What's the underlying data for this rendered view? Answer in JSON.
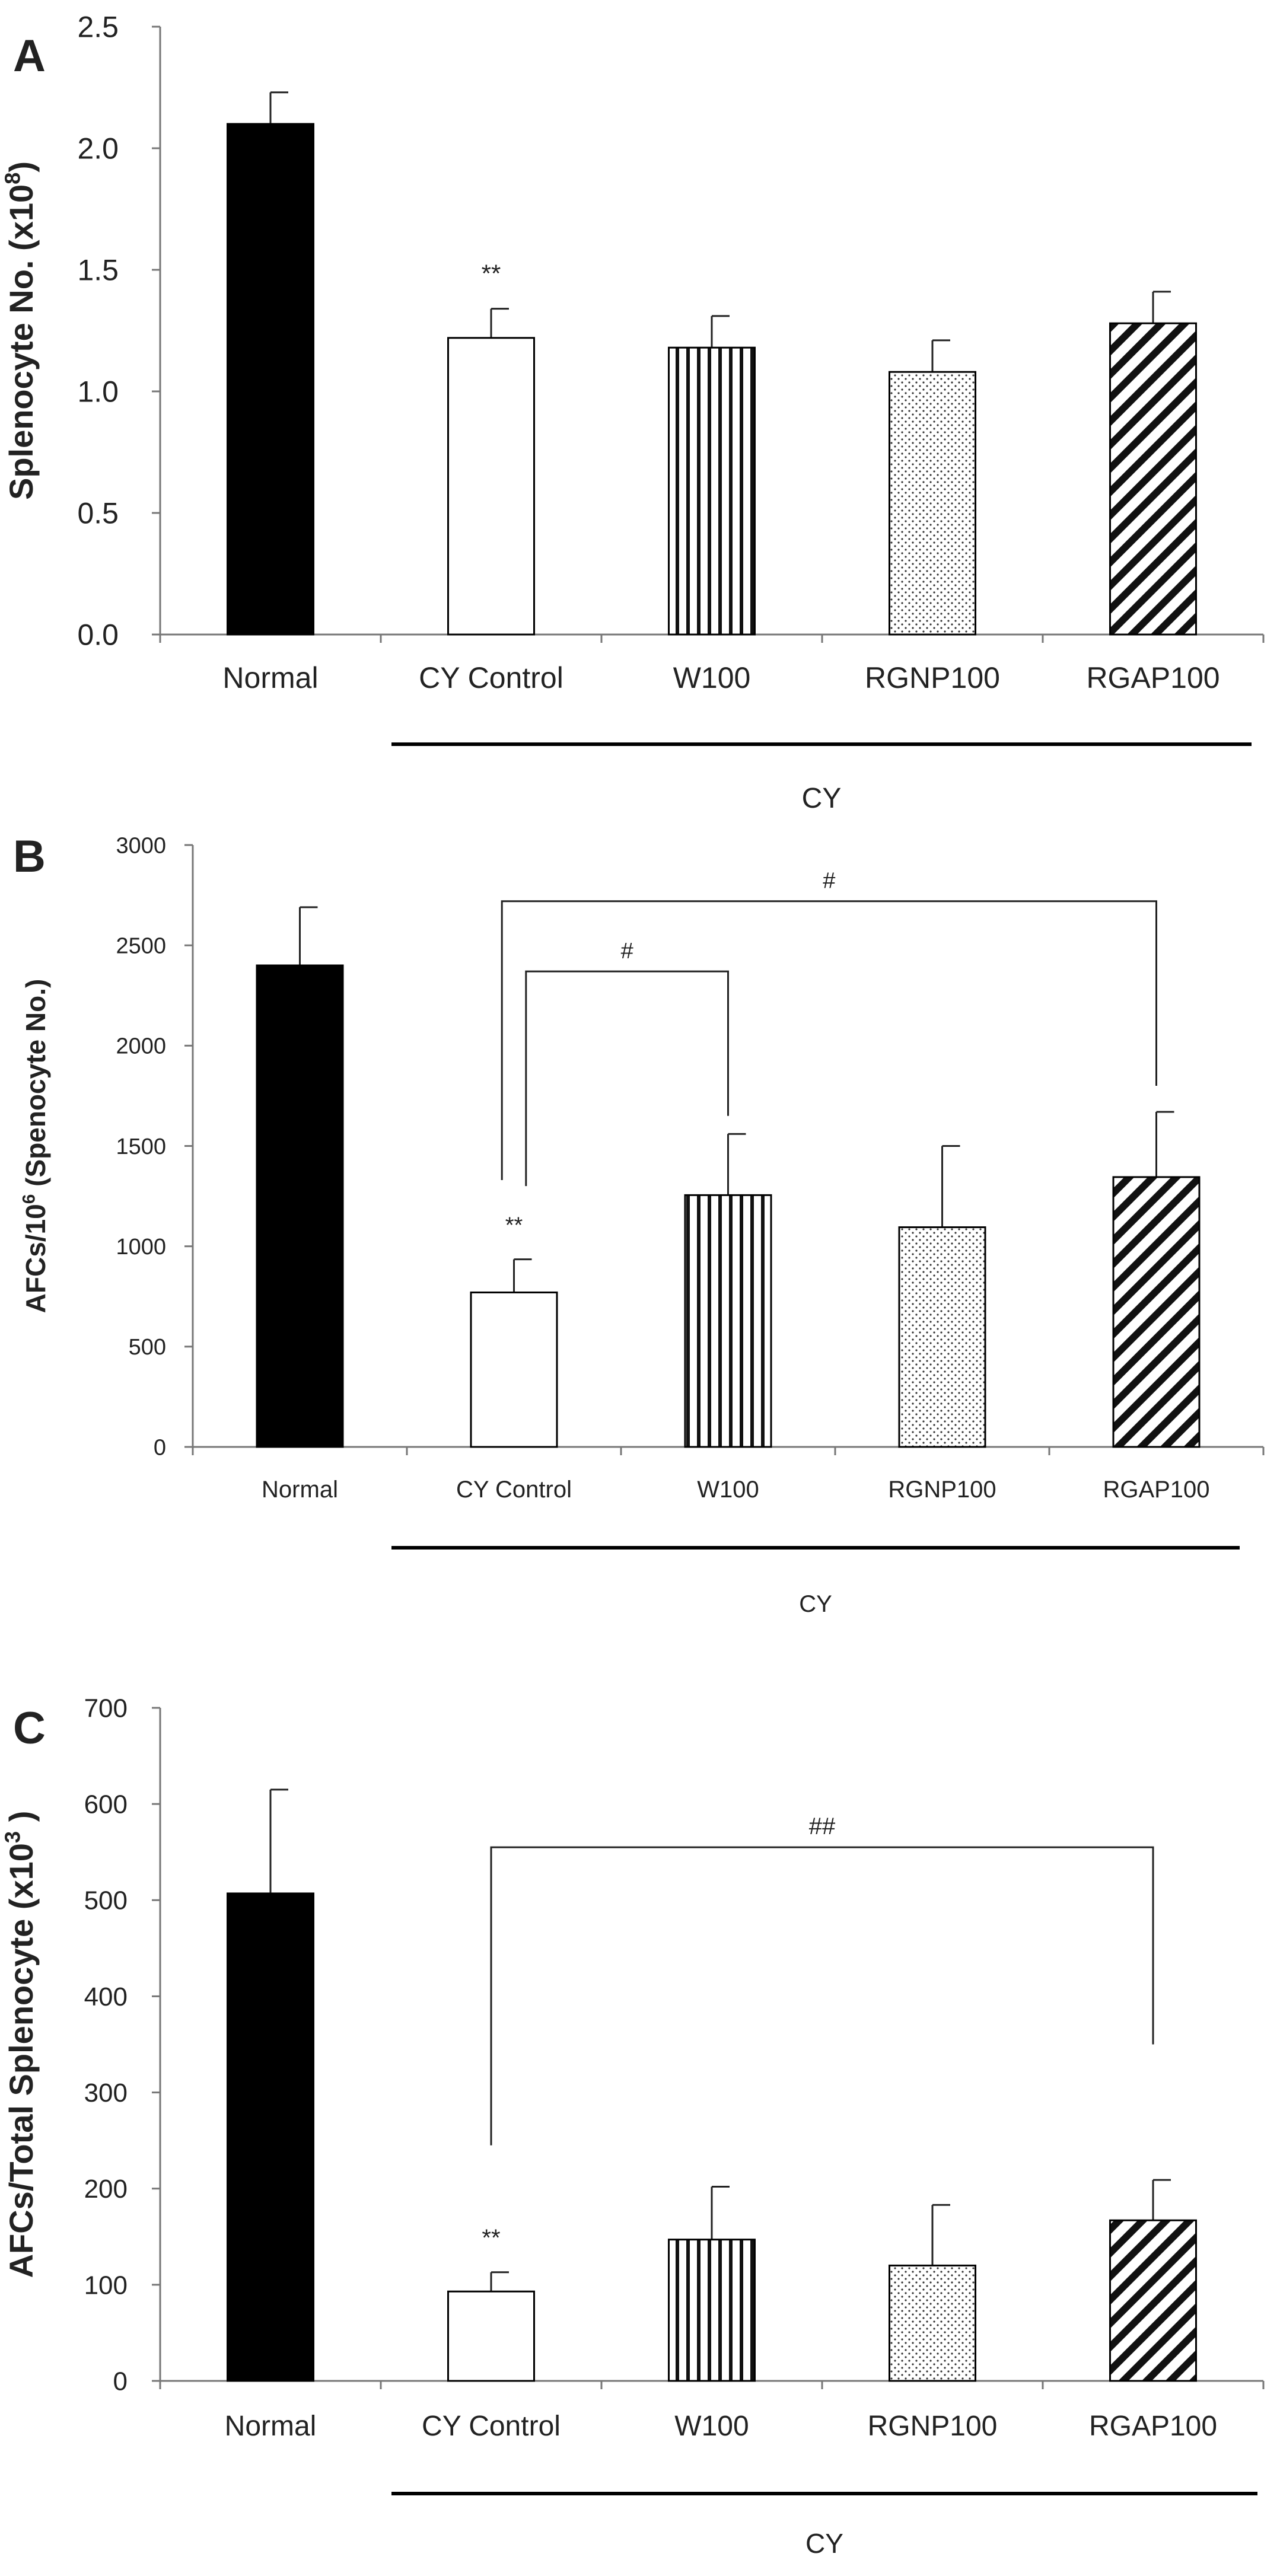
{
  "chart_data": [
    {
      "panel": "A",
      "type": "bar",
      "ylabel_main": "Splenocyte No. (x10",
      "ylabel_sup": "8",
      "ylabel_close": ")",
      "ylim": [
        0,
        2.5
      ],
      "yticks": [
        "0.0",
        "0.5",
        "1.0",
        "1.5",
        "2.0",
        "2.5"
      ],
      "categories": [
        "Normal",
        "CY Control",
        "W100",
        "RGNP100",
        "RGAP100"
      ],
      "values": [
        2.1,
        1.22,
        1.18,
        1.08,
        1.28
      ],
      "errors": [
        0.13,
        0.12,
        0.13,
        0.13,
        0.13
      ],
      "patterns": [
        "solid",
        "empty",
        "vertical",
        "dots",
        "diagonal"
      ],
      "annotations": [
        {
          "bar": 1,
          "text": "**"
        }
      ],
      "brackets": [],
      "group_label": "CY"
    },
    {
      "panel": "B",
      "type": "bar",
      "ylabel_main": "AFCs/10",
      "ylabel_sup": "6",
      "ylabel_close": " (Spenocyte No.)",
      "ylim": [
        0,
        3000
      ],
      "yticks": [
        "0",
        "500",
        "1000",
        "1500",
        "2000",
        "2500",
        "3000"
      ],
      "categories": [
        "Normal",
        "CY Control",
        "W100",
        "RGNP100",
        "RGAP100"
      ],
      "values": [
        2400,
        770,
        1255,
        1095,
        1345
      ],
      "errors": [
        290,
        165,
        305,
        405,
        325
      ],
      "patterns": [
        "solid",
        "empty",
        "vertical",
        "dots",
        "diagonal"
      ],
      "annotations": [
        {
          "bar": 1,
          "text": "**"
        }
      ],
      "brackets": [
        {
          "from": 1,
          "to": 2,
          "text": "#",
          "left_bottom": 1300,
          "right_bottom": 1650,
          "top": 2370,
          "from_offset": 0.14
        },
        {
          "from": 1,
          "to": 4,
          "text": "#",
          "left_bottom": 1330,
          "right_bottom": 1800,
          "top": 2720,
          "from_offset": -0.14
        }
      ],
      "group_label": "CY"
    },
    {
      "panel": "C",
      "type": "bar",
      "ylabel_main": "AFCs/Total Splenocyte (x10",
      "ylabel_sup": "3",
      "ylabel_close": " )",
      "ylim": [
        0,
        700
      ],
      "yticks": [
        "0",
        "100",
        "200",
        "300",
        "400",
        "500",
        "600",
        "700"
      ],
      "categories": [
        "Normal",
        "CY Control",
        "W100",
        "RGNP100",
        "RGAP100"
      ],
      "values": [
        507,
        93,
        147,
        120,
        167
      ],
      "errors": [
        108,
        20,
        55,
        63,
        42
      ],
      "patterns": [
        "solid",
        "empty",
        "vertical",
        "dots",
        "diagonal"
      ],
      "annotations": [
        {
          "bar": 1,
          "text": "**"
        }
      ],
      "brackets": [
        {
          "from": 1,
          "to": 4,
          "text": "##",
          "left_bottom": 245,
          "right_bottom": 350,
          "top": 555,
          "from_offset": 0
        }
      ],
      "group_label": "CY"
    }
  ]
}
